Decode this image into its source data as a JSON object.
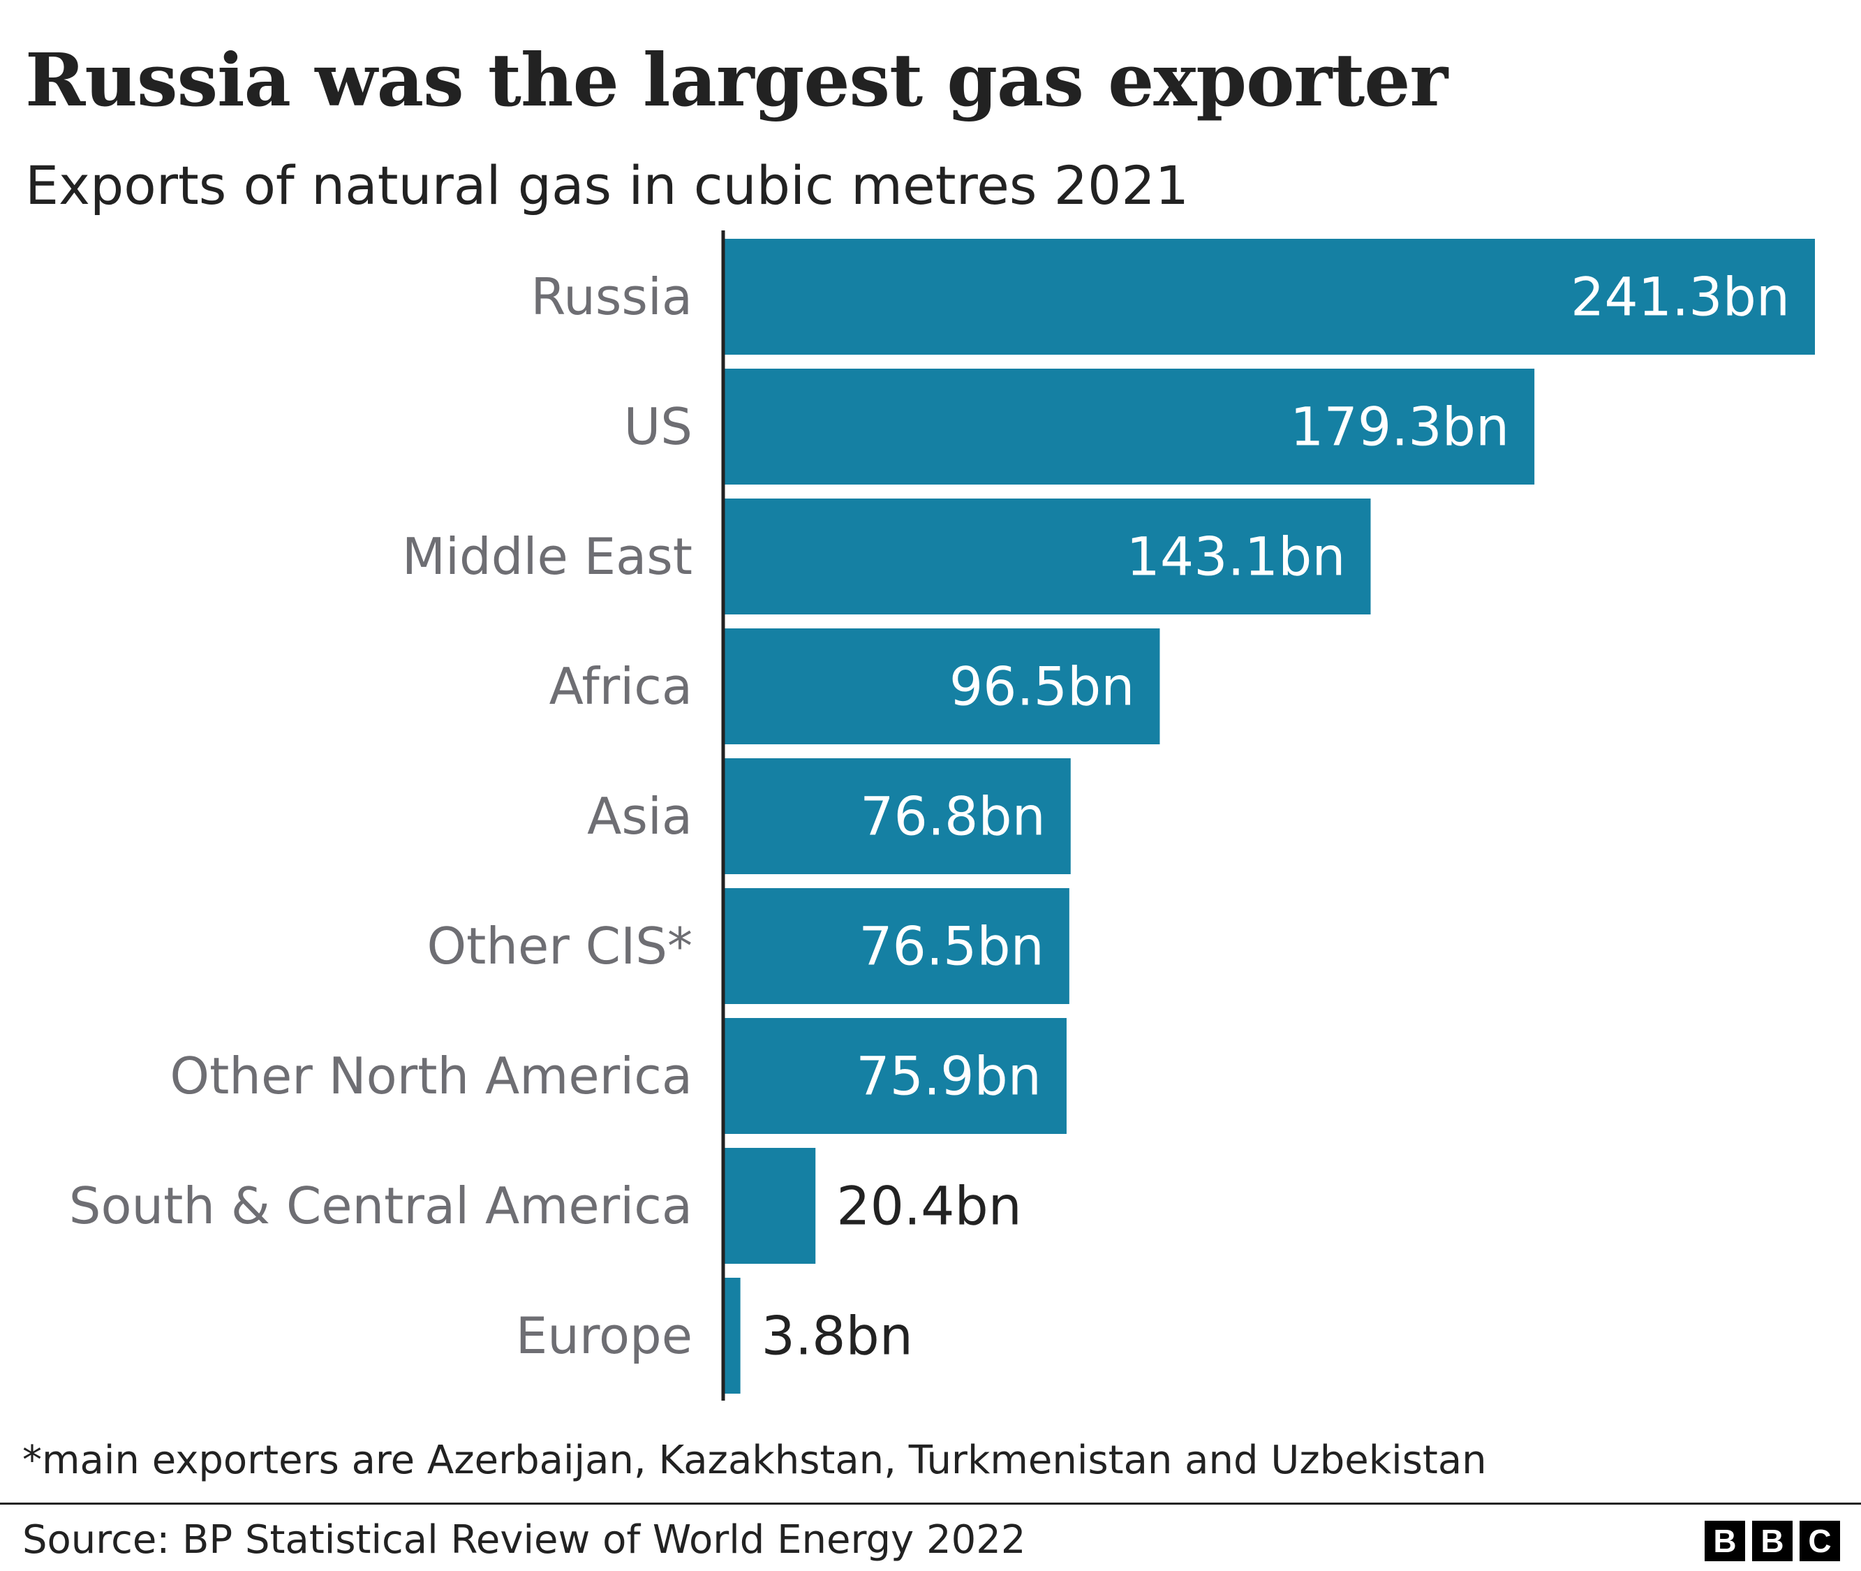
{
  "title": "Russia was the largest gas exporter",
  "subtitle": "Exports of natural gas in cubic metres 2021",
  "footnote": "*main exporters are Azerbaijan, Kazakhstan, Turkmenistan and Uzbekistan",
  "source": "Source: BP Statistical Review of World Energy 2022",
  "logo": [
    "B",
    "B",
    "C"
  ],
  "colors": {
    "bar": "#1580a3",
    "category_label": "#6e6e73",
    "value_inside": "#ffffff",
    "value_outside": "#222222",
    "axis": "#222222"
  },
  "chart_data": {
    "type": "bar",
    "orientation": "horizontal",
    "categories": [
      "Russia",
      "US",
      "Middle East",
      "Africa",
      "Asia",
      "Other CIS*",
      "Other North America",
      "South & Central America",
      "Europe"
    ],
    "values": [
      241.3,
      179.3,
      143.1,
      96.5,
      76.8,
      76.5,
      75.9,
      20.4,
      3.8
    ],
    "data_labels": [
      "241.3bn",
      "179.3bn",
      "143.1bn",
      "96.5bn",
      "76.8bn",
      "76.5bn",
      "75.9bn",
      "20.4bn",
      "3.8bn"
    ],
    "title": "Russia was the largest gas exporter",
    "subtitle": "Exports of natural gas in cubic metres 2021",
    "xlabel": "",
    "ylabel": "",
    "xlim": [
      0,
      241.3
    ],
    "grid": false,
    "legend": "none"
  }
}
